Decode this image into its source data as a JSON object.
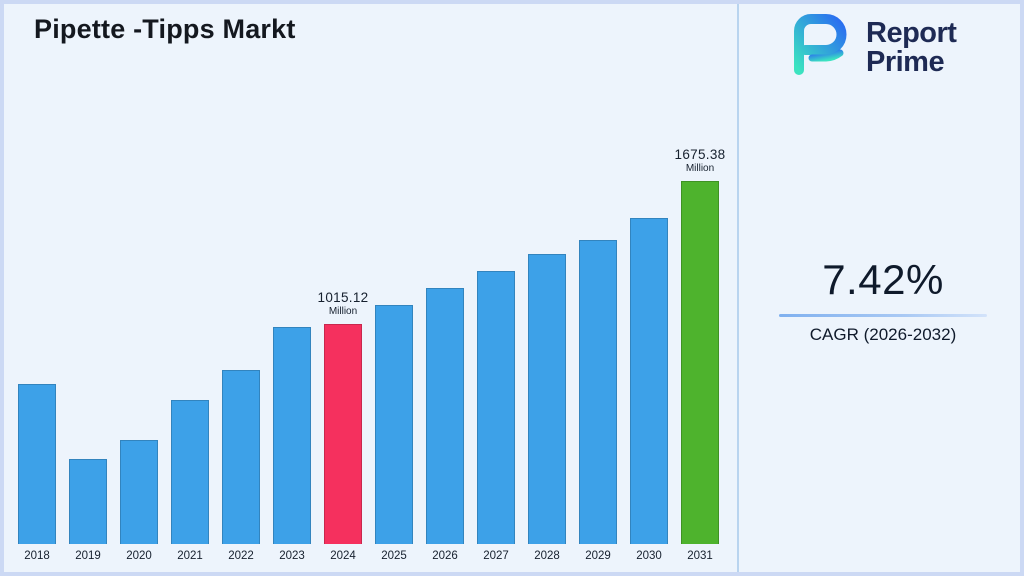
{
  "title": "Pipette -Tipps Markt",
  "logo": {
    "line1": "Report",
    "line2": "Prime",
    "mark": "report-prime-monogram"
  },
  "stats": {
    "cagr_value": "7.42%",
    "cagr_label": "CAGR (2026-2032)"
  },
  "chart_data": {
    "type": "bar",
    "title": "Pipette -Tipps Markt",
    "xlabel": "",
    "ylabel": "",
    "unit": "Million",
    "categories": [
      "2018",
      "2019",
      "2020",
      "2021",
      "2022",
      "2023",
      "2024",
      "2025",
      "2026",
      "2027",
      "2028",
      "2029",
      "2030",
      "2031"
    ],
    "values": [
      740,
      390,
      480,
      665,
      805,
      1000,
      1015.12,
      1105,
      1180,
      1260,
      1340,
      1405,
      1505,
      1675.38
    ],
    "default_color": "#3DA1E8",
    "colors": {
      "2024": "#F5305E",
      "2031": "#4EB32D"
    },
    "annotations": {
      "2024": {
        "value": "1015.12",
        "unit": "Million"
      },
      "2031": {
        "value": "1675.38",
        "unit": "Million"
      }
    },
    "ylim": [
      0,
      1800
    ],
    "grid": false,
    "legend": false
  },
  "colors": {
    "background": "#EDF4FC",
    "frame_border": "#CCD9F4",
    "divider": "#B9D4EF",
    "logo_navy": "#1E2A54",
    "logo_gradient_start": "#3BE3C0",
    "logo_gradient_end": "#2A6BF2"
  }
}
